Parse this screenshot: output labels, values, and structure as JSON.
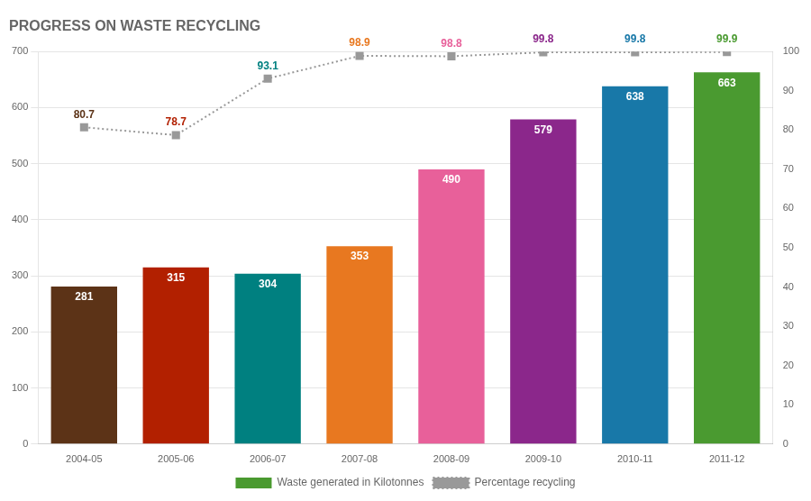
{
  "chart_data": {
    "type": "bar",
    "title": "PROGRESS ON WASTE RECYCLING",
    "categories": [
      "2004-05",
      "2005-06",
      "2006-07",
      "2007-08",
      "2008-09",
      "2009-10",
      "2010-11",
      "2011-12"
    ],
    "series": [
      {
        "name": "Waste generated in Kilotonnes",
        "type": "bar",
        "color": "#4A9A30",
        "colors": [
          "#5C3317",
          "#B22000",
          "#008080",
          "#E87820",
          "#E8609A",
          "#8B278B",
          "#1878A8",
          "#4A9A30"
        ],
        "values": [
          281,
          315,
          304,
          353,
          490,
          579,
          638,
          663
        ]
      },
      {
        "name": "Percentage recycling",
        "type": "line",
        "axis": "y2",
        "color": "#999999",
        "marker": "square",
        "line_style": "dotted",
        "values": [
          80.7,
          78.7,
          93.1,
          98.9,
          98.8,
          99.8,
          99.8,
          99.9
        ]
      }
    ],
    "ylim": [
      0,
      700
    ],
    "yticks": [
      0,
      100,
      200,
      300,
      400,
      500,
      600,
      700
    ],
    "y2lim": [
      0,
      100
    ],
    "y2ticks": [
      0,
      10,
      20,
      30,
      40,
      50,
      60,
      70,
      80,
      90,
      100
    ],
    "grid": true,
    "legend": "bottom",
    "data_labels": true
  }
}
